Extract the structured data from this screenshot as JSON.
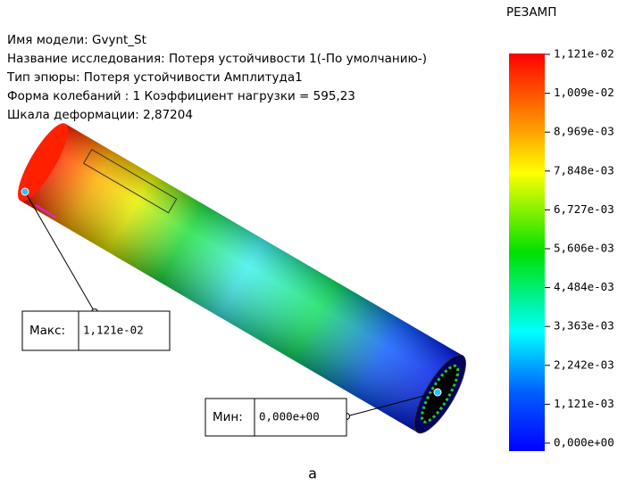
{
  "info": [
    "Имя модели: Gvynt_St",
    "Название исследования: Потеря устойчивости 1(-По умолчанию-)",
    "Тип эпюры: Потеря устойчивости Амплитуда1",
    "Форма колебаний : 1  Коэффициент нагрузки = 595,23",
    "Шкала деформации: 2,87204"
  ],
  "legend": {
    "title": "РЕЗАМП",
    "labels": [
      "1,121e-02",
      "1,009e-02",
      "8,969e-03",
      "7,848e-03",
      "6,727e-03",
      "5,606e-03",
      "4,484e-03",
      "3,363e-03",
      "2,242e-03",
      "1,121e-03",
      "0,000e+00"
    ]
  },
  "max": {
    "label": "Макс:",
    "value": "1,121e-02"
  },
  "min": {
    "label": "Мин:",
    "value": "0,000e+00"
  },
  "caption": "а"
}
